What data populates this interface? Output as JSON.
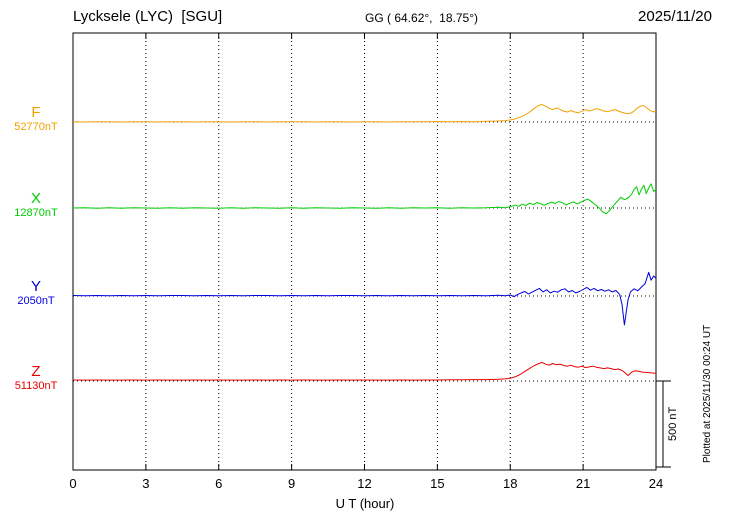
{
  "header": {
    "station": "Lycksele (LYC)  [SGU]",
    "coords": "GG ( 64.62°,  18.75°)",
    "date": "2025/11/20"
  },
  "axis": {
    "x_ticks": [
      0,
      3,
      6,
      9,
      12,
      15,
      18,
      21,
      24
    ],
    "x_label": "U T (hour)",
    "hours_max": 24
  },
  "scale_bar": {
    "label": "500 nT",
    "nT": 500
  },
  "footer_note": "Plotted at 2025/11/30 00:24 UT",
  "chart_data": {
    "type": "line",
    "title": "Lycksele (LYC) [SGU] magnetogram 2025/11/20",
    "xlabel": "U T (hour)",
    "ylabel": "",
    "xlim": [
      0,
      24
    ],
    "grid": "vertical dotted every 3 h, dotted baseline per component",
    "legend_position": "left margin, one colored label per stacked trace",
    "scale_nT": 500,
    "series": [
      {
        "name": "F",
        "baseline_value": "52770nT",
        "color": "#f2a200",
        "points": [
          [
            0,
            2
          ],
          [
            0.5,
            0
          ],
          [
            1,
            2
          ],
          [
            1.5,
            1
          ],
          [
            2,
            0
          ],
          [
            2.5,
            2
          ],
          [
            3,
            1
          ],
          [
            3.5,
            0
          ],
          [
            4,
            2
          ],
          [
            4.5,
            1
          ],
          [
            5,
            0
          ],
          [
            5.5,
            1
          ],
          [
            6,
            2
          ],
          [
            6.5,
            0
          ],
          [
            7,
            1
          ],
          [
            7.5,
            2
          ],
          [
            8,
            0
          ],
          [
            8.5,
            1
          ],
          [
            9,
            2
          ],
          [
            9.5,
            1
          ],
          [
            10,
            0
          ],
          [
            10.5,
            2
          ],
          [
            11,
            1
          ],
          [
            11.5,
            0
          ],
          [
            12,
            2
          ],
          [
            12.5,
            1
          ],
          [
            13,
            0
          ],
          [
            13.5,
            2
          ],
          [
            14,
            1
          ],
          [
            14.5,
            2
          ],
          [
            15,
            3
          ],
          [
            15.5,
            2
          ],
          [
            16,
            3
          ],
          [
            16.5,
            2
          ],
          [
            17,
            4
          ],
          [
            17.5,
            6
          ],
          [
            17.8,
            8
          ],
          [
            18,
            12
          ],
          [
            18.2,
            18
          ],
          [
            18.4,
            28
          ],
          [
            18.6,
            40
          ],
          [
            18.8,
            58
          ],
          [
            19,
            80
          ],
          [
            19.15,
            95
          ],
          [
            19.3,
            102
          ],
          [
            19.45,
            92
          ],
          [
            19.6,
            80
          ],
          [
            19.75,
            72
          ],
          [
            19.9,
            82
          ],
          [
            20.05,
            74
          ],
          [
            20.2,
            62
          ],
          [
            20.35,
            58
          ],
          [
            20.5,
            66
          ],
          [
            20.65,
            58
          ],
          [
            20.8,
            54
          ],
          [
            20.95,
            62
          ],
          [
            21.1,
            72
          ],
          [
            21.25,
            64
          ],
          [
            21.4,
            70
          ],
          [
            21.55,
            78
          ],
          [
            21.7,
            72
          ],
          [
            21.85,
            64
          ],
          [
            22,
            60
          ],
          [
            22.15,
            66
          ],
          [
            22.3,
            72
          ],
          [
            22.45,
            64
          ],
          [
            22.6,
            56
          ],
          [
            22.75,
            50
          ],
          [
            22.9,
            48
          ],
          [
            23.05,
            58
          ],
          [
            23.2,
            78
          ],
          [
            23.35,
            92
          ],
          [
            23.5,
            96
          ],
          [
            23.65,
            78
          ],
          [
            23.8,
            64
          ],
          [
            23.9,
            58
          ],
          [
            24,
            64
          ]
        ]
      },
      {
        "name": "X",
        "baseline_value": "12870nT",
        "color": "#00cc00",
        "points": [
          [
            0,
            0
          ],
          [
            0.5,
            2
          ],
          [
            1,
            -2
          ],
          [
            1.5,
            1
          ],
          [
            2,
            -1
          ],
          [
            2.5,
            2
          ],
          [
            3,
            0
          ],
          [
            3.5,
            -2
          ],
          [
            4,
            1
          ],
          [
            4.5,
            -1
          ],
          [
            5,
            2
          ],
          [
            5.5,
            0
          ],
          [
            6,
            -2
          ],
          [
            6.5,
            1
          ],
          [
            7,
            -1
          ],
          [
            7.5,
            2
          ],
          [
            8,
            0
          ],
          [
            8.5,
            -1
          ],
          [
            9,
            1
          ],
          [
            9.5,
            -2
          ],
          [
            10,
            2
          ],
          [
            10.5,
            0
          ],
          [
            11,
            -1
          ],
          [
            11.5,
            1
          ],
          [
            12,
            0
          ],
          [
            12.5,
            -2
          ],
          [
            13,
            1
          ],
          [
            13.5,
            -1
          ],
          [
            14,
            2
          ],
          [
            14.5,
            0
          ],
          [
            15,
            1
          ],
          [
            15.5,
            -1
          ],
          [
            16,
            2
          ],
          [
            16.5,
            0
          ],
          [
            17,
            1
          ],
          [
            17.5,
            4
          ],
          [
            17.8,
            2
          ],
          [
            18,
            8
          ],
          [
            18.2,
            16
          ],
          [
            18.35,
            10
          ],
          [
            18.5,
            22
          ],
          [
            18.65,
            14
          ],
          [
            18.8,
            28
          ],
          [
            18.95,
            20
          ],
          [
            19.1,
            32
          ],
          [
            19.25,
            24
          ],
          [
            19.4,
            16
          ],
          [
            19.55,
            26
          ],
          [
            19.7,
            34
          ],
          [
            19.85,
            26
          ],
          [
            20,
            38
          ],
          [
            20.15,
            30
          ],
          [
            20.3,
            18
          ],
          [
            20.45,
            28
          ],
          [
            20.6,
            36
          ],
          [
            20.75,
            24
          ],
          [
            20.9,
            34
          ],
          [
            21.05,
            44
          ],
          [
            21.2,
            52
          ],
          [
            21.35,
            36
          ],
          [
            21.5,
            20
          ],
          [
            21.65,
            2
          ],
          [
            21.8,
            -22
          ],
          [
            21.95,
            -34
          ],
          [
            22.1,
            -12
          ],
          [
            22.25,
            14
          ],
          [
            22.4,
            38
          ],
          [
            22.55,
            62
          ],
          [
            22.7,
            48
          ],
          [
            22.85,
            58
          ],
          [
            23,
            80
          ],
          [
            23.1,
            108
          ],
          [
            23.2,
            124
          ],
          [
            23.3,
            76
          ],
          [
            23.4,
            108
          ],
          [
            23.5,
            132
          ],
          [
            23.6,
            84
          ],
          [
            23.7,
            116
          ],
          [
            23.8,
            140
          ],
          [
            23.9,
            96
          ],
          [
            24,
            108
          ]
        ]
      },
      {
        "name": "Y",
        "baseline_value": "2050nT",
        "color": "#0000dd",
        "points": [
          [
            0,
            3
          ],
          [
            0.5,
            2
          ],
          [
            1,
            3
          ],
          [
            1.5,
            2
          ],
          [
            2,
            3
          ],
          [
            2.5,
            2
          ],
          [
            3,
            3
          ],
          [
            3.5,
            2
          ],
          [
            4,
            3
          ],
          [
            4.5,
            3
          ],
          [
            5,
            2
          ],
          [
            5.5,
            3
          ],
          [
            6,
            2
          ],
          [
            6.5,
            3
          ],
          [
            7,
            2
          ],
          [
            7.5,
            3
          ],
          [
            8,
            3
          ],
          [
            8.5,
            2
          ],
          [
            9,
            3
          ],
          [
            9.5,
            2
          ],
          [
            10,
            3
          ],
          [
            10.5,
            2
          ],
          [
            11,
            3
          ],
          [
            11.5,
            3
          ],
          [
            12,
            2
          ],
          [
            12.5,
            3
          ],
          [
            13,
            2
          ],
          [
            13.5,
            3
          ],
          [
            14,
            2
          ],
          [
            14.5,
            3
          ],
          [
            15,
            2
          ],
          [
            15.5,
            3
          ],
          [
            16,
            2
          ],
          [
            16.5,
            3
          ],
          [
            17,
            2
          ],
          [
            17.5,
            4
          ],
          [
            17.8,
            2
          ],
          [
            18,
            6
          ],
          [
            18.15,
            -4
          ],
          [
            18.3,
            8
          ],
          [
            18.45,
            18
          ],
          [
            18.6,
            26
          ],
          [
            18.75,
            12
          ],
          [
            18.9,
            22
          ],
          [
            19.05,
            34
          ],
          [
            19.2,
            44
          ],
          [
            19.35,
            24
          ],
          [
            19.5,
            36
          ],
          [
            19.65,
            18
          ],
          [
            19.8,
            28
          ],
          [
            19.95,
            22
          ],
          [
            20.1,
            36
          ],
          [
            20.25,
            42
          ],
          [
            20.4,
            24
          ],
          [
            20.55,
            32
          ],
          [
            20.7,
            18
          ],
          [
            20.85,
            26
          ],
          [
            21,
            38
          ],
          [
            21.15,
            50
          ],
          [
            21.3,
            34
          ],
          [
            21.45,
            44
          ],
          [
            21.6,
            30
          ],
          [
            21.75,
            38
          ],
          [
            21.9,
            28
          ],
          [
            22.05,
            36
          ],
          [
            22.2,
            24
          ],
          [
            22.35,
            32
          ],
          [
            22.5,
            10
          ],
          [
            22.6,
            -48
          ],
          [
            22.7,
            -168
          ],
          [
            22.78,
            -88
          ],
          [
            22.85,
            -20
          ],
          [
            22.95,
            24
          ],
          [
            23.1,
            42
          ],
          [
            23.25,
            30
          ],
          [
            23.4,
            52
          ],
          [
            23.55,
            72
          ],
          [
            23.7,
            138
          ],
          [
            23.8,
            92
          ],
          [
            23.9,
            116
          ],
          [
            24,
            104
          ]
        ]
      },
      {
        "name": "Z",
        "baseline_value": "51130nT",
        "color": "#e80000",
        "points": [
          [
            0,
            6
          ],
          [
            0.5,
            5
          ],
          [
            1,
            6
          ],
          [
            1.5,
            5
          ],
          [
            2,
            5
          ],
          [
            2.5,
            6
          ],
          [
            3,
            5
          ],
          [
            3.5,
            6
          ],
          [
            4,
            5
          ],
          [
            4.5,
            5
          ],
          [
            5,
            6
          ],
          [
            5.5,
            5
          ],
          [
            6,
            6
          ],
          [
            6.5,
            5
          ],
          [
            7,
            5
          ],
          [
            7.5,
            6
          ],
          [
            8,
            5
          ],
          [
            8.5,
            6
          ],
          [
            9,
            5
          ],
          [
            9.5,
            6
          ],
          [
            10,
            5
          ],
          [
            10.5,
            5
          ],
          [
            11,
            6
          ],
          [
            11.5,
            5
          ],
          [
            12,
            6
          ],
          [
            12.5,
            5
          ],
          [
            13,
            5
          ],
          [
            13.5,
            6
          ],
          [
            14,
            5
          ],
          [
            14.5,
            6
          ],
          [
            15,
            6
          ],
          [
            15.5,
            7
          ],
          [
            16,
            7
          ],
          [
            16.5,
            8
          ],
          [
            17,
            8
          ],
          [
            17.5,
            10
          ],
          [
            17.8,
            12
          ],
          [
            18,
            16
          ],
          [
            18.2,
            24
          ],
          [
            18.4,
            38
          ],
          [
            18.6,
            56
          ],
          [
            18.8,
            74
          ],
          [
            19,
            90
          ],
          [
            19.15,
            100
          ],
          [
            19.3,
            108
          ],
          [
            19.45,
            98
          ],
          [
            19.6,
            92
          ],
          [
            19.75,
            102
          ],
          [
            19.9,
            94
          ],
          [
            20.05,
            98
          ],
          [
            20.2,
            90
          ],
          [
            20.35,
            86
          ],
          [
            20.5,
            92
          ],
          [
            20.65,
            84
          ],
          [
            20.8,
            80
          ],
          [
            20.95,
            86
          ],
          [
            21.1,
            78
          ],
          [
            21.25,
            82
          ],
          [
            21.4,
            86
          ],
          [
            21.55,
            80
          ],
          [
            21.7,
            76
          ],
          [
            21.85,
            72
          ],
          [
            22,
            76
          ],
          [
            22.15,
            72
          ],
          [
            22.3,
            66
          ],
          [
            22.45,
            70
          ],
          [
            22.6,
            62
          ],
          [
            22.75,
            44
          ],
          [
            22.85,
            32
          ],
          [
            23,
            52
          ],
          [
            23.15,
            60
          ],
          [
            23.3,
            56
          ],
          [
            23.45,
            52
          ],
          [
            23.6,
            50
          ],
          [
            23.75,
            48
          ],
          [
            23.9,
            46
          ],
          [
            24,
            46
          ]
        ]
      }
    ]
  }
}
